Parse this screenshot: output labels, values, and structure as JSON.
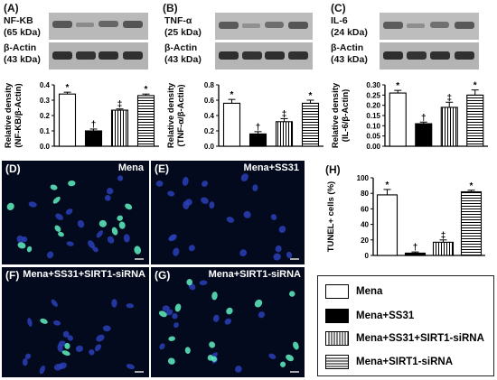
{
  "panels": {
    "A": {
      "letter": "(A)",
      "protein": "NF-KB",
      "protein_kda": "(65 kDa)",
      "actin": "β-Actin",
      "actin_kda": "(43 kDa)"
    },
    "B": {
      "letter": "(B)",
      "protein": "TNF-α",
      "protein_kda": "(25 kDa)",
      "actin": "β-Actin",
      "actin_kda": "(43 kDa)"
    },
    "C": {
      "letter": "(C)",
      "protein": "IL-6",
      "protein_kda": "(24 kDa)",
      "actin": "β-Actin",
      "actin_kda": "(43 kDa)"
    },
    "H": {
      "letter": "(H)"
    }
  },
  "micrographs": [
    {
      "letter": "(D)",
      "title": "Mena"
    },
    {
      "letter": "(E)",
      "title": "Mena+SS31"
    },
    {
      "letter": "(F)",
      "title": "Mena+SS31+SIRT1-siRNA"
    },
    {
      "letter": "(G)",
      "title": "Mena+SIRT1-siRNA"
    }
  ],
  "legend": [
    {
      "label": "Mena",
      "pattern": "white"
    },
    {
      "label": "Mena+SS31",
      "pattern": "black"
    },
    {
      "label": "Mena+SS31+SIRT1-siRNA",
      "pattern": "vertical"
    },
    {
      "label": "Mena+SIRT1-siRNA",
      "pattern": "horizontal"
    }
  ],
  "colors": {
    "nuclei_blue": "#2a3fb8",
    "tunel_green": "#5ff0c0",
    "background": "#030a1e"
  },
  "chart_data": [
    {
      "id": "A",
      "type": "bar",
      "ylabel_lines": [
        "Relative density",
        "(NF-KB/β-Actin)"
      ],
      "ylim": [
        0,
        0.4
      ],
      "yticks": [
        "0.0",
        "0.1",
        "0.2",
        "0.3",
        "0.4"
      ],
      "series": [
        {
          "values": [
            0.34,
            0.1,
            0.235,
            0.33
          ],
          "errors": [
            0.012,
            0.012,
            0.008,
            0.01
          ],
          "marks": [
            "*",
            "†",
            "‡",
            "*"
          ]
        }
      ]
    },
    {
      "id": "B",
      "type": "bar",
      "ylabel_lines": [
        "Relative density",
        "(TNF-α/β-Actin)"
      ],
      "ylim": [
        0,
        0.8
      ],
      "yticks": [
        "0.0",
        "0.2",
        "0.4",
        "0.6",
        "0.8"
      ],
      "series": [
        {
          "values": [
            0.56,
            0.16,
            0.32,
            0.56
          ],
          "errors": [
            0.05,
            0.03,
            0.04,
            0.04
          ],
          "marks": [
            "*",
            "†",
            "‡",
            "*"
          ]
        }
      ]
    },
    {
      "id": "C",
      "type": "bar",
      "ylabel_lines": [
        "Relative density",
        "(IL-6/β-Actin)"
      ],
      "ylim": [
        0,
        0.3
      ],
      "yticks": [
        "0.00",
        "0.05",
        "0.10",
        "0.15",
        "0.20",
        "0.25",
        "0.30"
      ],
      "series": [
        {
          "values": [
            0.26,
            0.11,
            0.19,
            0.25
          ],
          "errors": [
            0.013,
            0.008,
            0.025,
            0.025
          ],
          "marks": [
            "*",
            "†",
            "‡",
            "*"
          ]
        }
      ]
    },
    {
      "id": "H",
      "type": "bar",
      "ylabel_lines": [
        "TUNEL+ cells (%)"
      ],
      "ylim": [
        0,
        100
      ],
      "yticks": [
        "0",
        "20",
        "40",
        "60",
        "80",
        "100"
      ],
      "series": [
        {
          "values": [
            78,
            3,
            17,
            82
          ],
          "errors": [
            7,
            1.5,
            3,
            2
          ],
          "marks": [
            "*",
            "†",
            "‡",
            "*"
          ]
        }
      ]
    }
  ]
}
